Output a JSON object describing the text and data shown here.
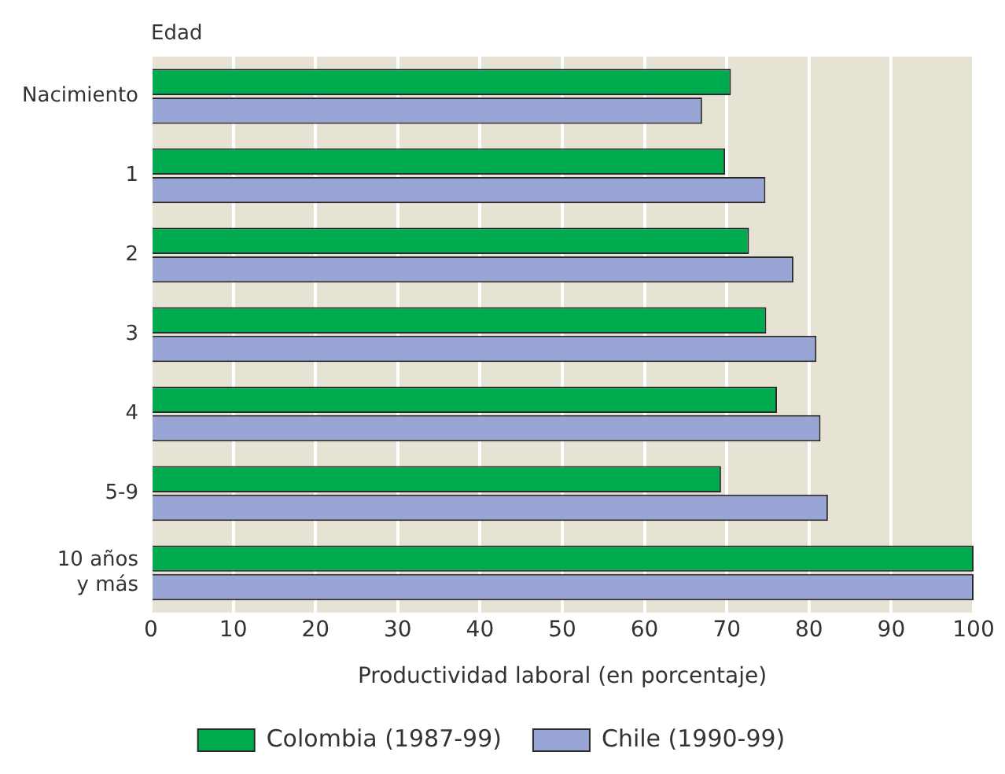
{
  "chart_data": {
    "type": "bar",
    "orientation": "horizontal",
    "xlabel": "Productividad laboral (en porcentaje)",
    "ylabel": "Edad",
    "categories": [
      "Nacimiento",
      "1",
      "2",
      "3",
      "4",
      "5-9",
      "10 años\ny más"
    ],
    "series": [
      {
        "name": "Colombia (1987-99)",
        "color": "#00aa4f",
        "values": [
          70.5,
          69.8,
          72.7,
          74.8,
          76.1,
          69.3,
          100
        ]
      },
      {
        "name": "Chile (1990-99)",
        "color": "#99a5d4",
        "values": [
          67.0,
          74.7,
          78.1,
          80.9,
          81.4,
          82.3,
          100
        ]
      }
    ],
    "xlim": [
      0,
      100
    ],
    "xticks": [
      0,
      10,
      20,
      30,
      40,
      50,
      60,
      70,
      80,
      90,
      100
    ],
    "grid": "x",
    "legend": "bottom"
  }
}
